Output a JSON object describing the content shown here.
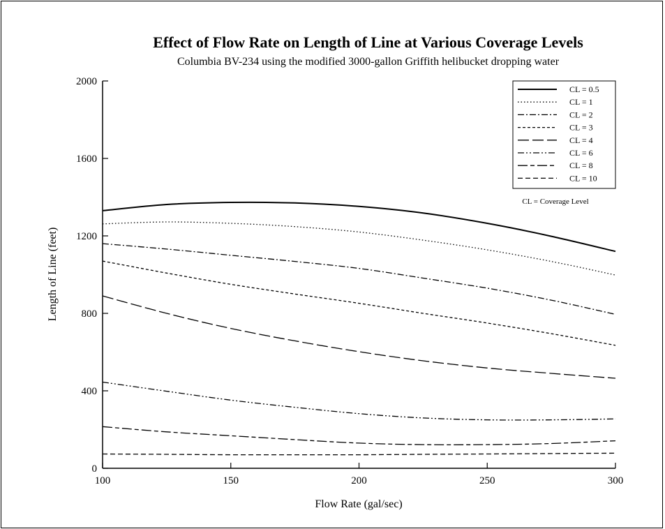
{
  "chart_data": {
    "type": "line",
    "title": "Effect of Flow Rate on Length of Line at Various Coverage Levels",
    "subtitle": "Columbia BV-234 using the modified 3000-gallon Griffith helibucket dropping water",
    "xlabel": "Flow Rate (gal/sec)",
    "ylabel": "Length of Line (feet)",
    "xlim": [
      100,
      300
    ],
    "ylim": [
      0,
      2000
    ],
    "xticks": [
      100,
      150,
      200,
      250,
      300
    ],
    "yticks": [
      0,
      400,
      800,
      1200,
      1600,
      2000
    ],
    "legend_position": "top-right",
    "legend_note": "CL = Coverage Level",
    "x": [
      100,
      125,
      150,
      175,
      200,
      225,
      250,
      275,
      300
    ],
    "series": [
      {
        "name": "CL = 0.5",
        "style": "solid",
        "values": [
          1330,
          1362,
          1373,
          1370,
          1352,
          1318,
          1265,
          1198,
          1120
        ]
      },
      {
        "name": "CL = 1",
        "style": "dotted",
        "values": [
          1262,
          1272,
          1265,
          1248,
          1220,
          1178,
          1128,
          1068,
          998
        ]
      },
      {
        "name": "CL = 2",
        "style": "dash-dot",
        "values": [
          1160,
          1132,
          1100,
          1068,
          1032,
          982,
          930,
          868,
          795
        ]
      },
      {
        "name": "CL = 3",
        "style": "short-dash",
        "values": [
          1070,
          1008,
          950,
          900,
          852,
          800,
          750,
          695,
          635
        ]
      },
      {
        "name": "CL = 4",
        "style": "long-dash",
        "values": [
          890,
          800,
          722,
          658,
          602,
          555,
          518,
          490,
          465
        ]
      },
      {
        "name": "CL = 6",
        "style": "dash-dot-dot",
        "values": [
          445,
          398,
          352,
          315,
          282,
          260,
          250,
          250,
          255
        ]
      },
      {
        "name": "CL = 8",
        "style": "long-short-dash",
        "values": [
          215,
          188,
          168,
          148,
          130,
          122,
          122,
          128,
          142
        ]
      },
      {
        "name": "CL = 10",
        "style": "medium-dash",
        "values": [
          74,
          72,
          70,
          70,
          70,
          72,
          74,
          76,
          78
        ]
      }
    ]
  }
}
